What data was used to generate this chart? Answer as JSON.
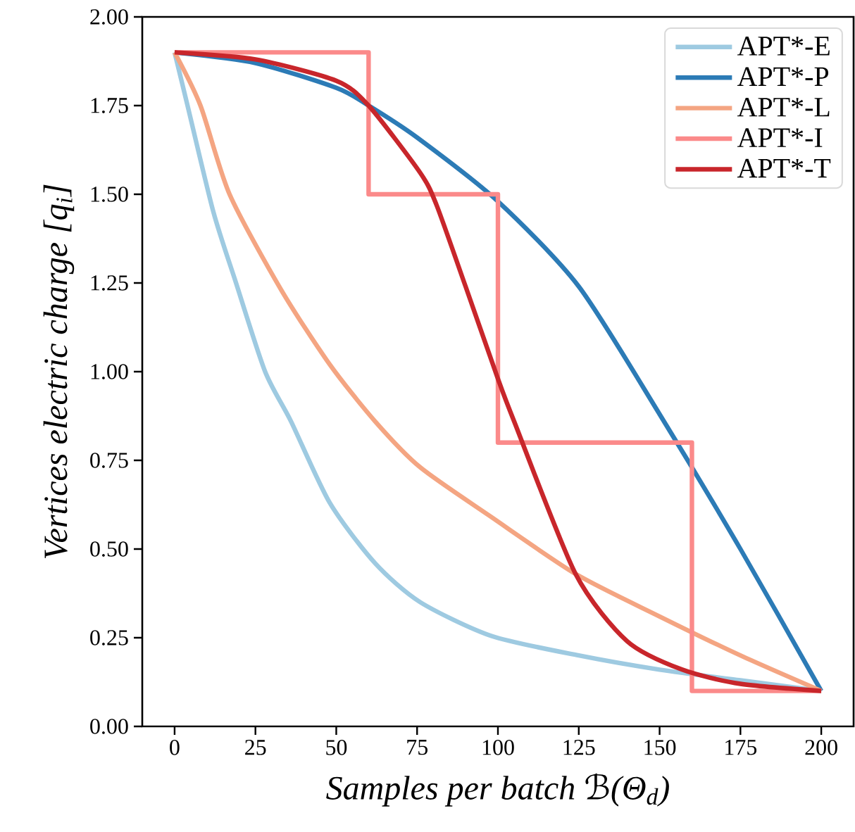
{
  "chart_data": {
    "type": "line",
    "xlabel": "Samples per batch ℬ(Θ$_{d}$)",
    "ylabel": "Vertices electric charge [q$_{i}$]",
    "xlim": [
      -10,
      210
    ],
    "ylim": [
      0,
      2
    ],
    "xticks": [
      0,
      25,
      50,
      75,
      100,
      125,
      150,
      175,
      200
    ],
    "yticks": [
      {
        "value": 0,
        "label": "0.00"
      },
      {
        "value": 0.25,
        "label": "0.25"
      },
      {
        "value": 0.5,
        "label": "0.50"
      },
      {
        "value": 0.75,
        "label": "0.75"
      },
      {
        "value": 1,
        "label": "1.00"
      },
      {
        "value": 1.25,
        "label": "1.25"
      },
      {
        "value": 1.5,
        "label": "1.50"
      },
      {
        "value": 1.75,
        "label": "1.75"
      },
      {
        "value": 2,
        "label": "2.00"
      }
    ],
    "legend": "top right",
    "series": [
      {
        "name": "APT*-E",
        "color": "#9ecae1",
        "x": [
          0,
          4,
          12,
          19,
          28,
          36,
          48,
          62,
          76,
          98,
          125,
          150,
          175,
          200
        ],
        "values": [
          1.9,
          1.75,
          1.45,
          1.25,
          1.0,
          0.86,
          0.63,
          0.46,
          0.35,
          0.255,
          0.2,
          0.16,
          0.13,
          0.1
        ]
      },
      {
        "name": "APT*-P",
        "color": "#2c7bb6",
        "x": [
          0,
          25,
          50,
          60,
          75,
          100,
          125,
          150,
          175,
          200
        ],
        "values": [
          1.9,
          1.87,
          1.8,
          1.75,
          1.66,
          1.48,
          1.24,
          0.88,
          0.5,
          0.1
        ]
      },
      {
        "name": "APT*-L",
        "color": "#f4a582",
        "x": [
          0,
          8,
          17,
          33,
          48,
          62,
          76,
          98,
          124,
          150,
          175,
          200
        ],
        "values": [
          1.9,
          1.75,
          1.5,
          1.23,
          1.02,
          0.86,
          0.73,
          0.59,
          0.43,
          0.31,
          0.2,
          0.1
        ]
      },
      {
        "name": "APT*-I",
        "color": "#fb8a8a",
        "type": "step",
        "x": [
          0,
          60,
          100,
          160,
          200
        ],
        "values": [
          1.9,
          1.5,
          0.8,
          0.1,
          0.1
        ]
      },
      {
        "name": "APT*-T",
        "color": "#c8262b",
        "x": [
          0,
          25,
          50,
          60,
          76,
          81,
          90,
          100,
          105,
          124,
          140,
          157,
          175,
          200
        ],
        "values": [
          1.9,
          1.88,
          1.82,
          1.75,
          1.56,
          1.47,
          1.24,
          0.98,
          0.86,
          0.43,
          0.24,
          0.16,
          0.12,
          0.1
        ]
      }
    ]
  }
}
